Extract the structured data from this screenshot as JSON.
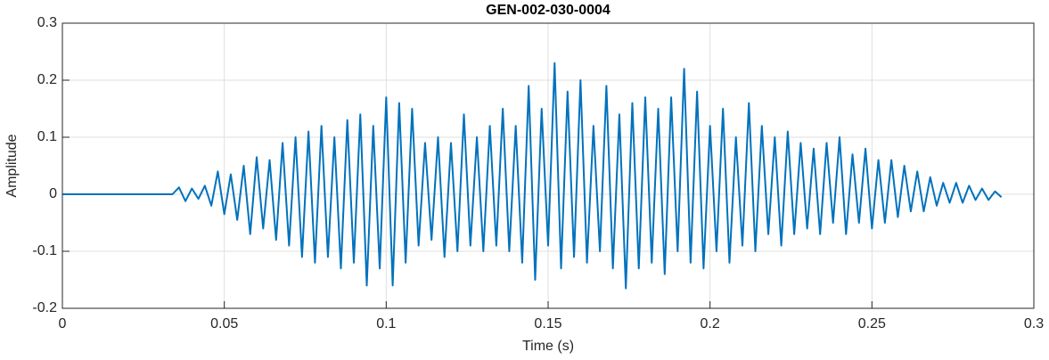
{
  "chart_data": {
    "type": "line",
    "title": "GEN-002-030-0004",
    "xlabel": "Time (s)",
    "ylabel": "Amplitude",
    "color": "#0072bd",
    "grid": true,
    "xlim": [
      0,
      0.3
    ],
    "xticks": [
      0,
      0.05,
      0.1,
      0.15,
      0.2,
      0.25,
      0.3
    ],
    "ylim": [
      -0.2,
      0.3
    ],
    "yticks": [
      -0.2,
      -0.1,
      0,
      0.1,
      0.2,
      0.3
    ],
    "x": [
      0,
      0.034,
      0.036,
      0.038,
      0.04,
      0.042,
      0.044,
      0.046,
      0.048,
      0.05,
      0.052,
      0.054,
      0.056,
      0.058,
      0.06,
      0.062,
      0.064,
      0.066,
      0.068,
      0.07,
      0.072,
      0.074,
      0.076,
      0.078,
      0.08,
      0.082,
      0.084,
      0.086,
      0.088,
      0.09,
      0.092,
      0.094,
      0.096,
      0.098,
      0.1,
      0.102,
      0.104,
      0.106,
      0.108,
      0.11,
      0.112,
      0.114,
      0.116,
      0.118,
      0.12,
      0.122,
      0.124,
      0.126,
      0.128,
      0.13,
      0.132,
      0.134,
      0.136,
      0.138,
      0.14,
      0.142,
      0.144,
      0.146,
      0.148,
      0.15,
      0.152,
      0.154,
      0.156,
      0.158,
      0.16,
      0.162,
      0.164,
      0.166,
      0.168,
      0.17,
      0.172,
      0.174,
      0.176,
      0.178,
      0.18,
      0.182,
      0.184,
      0.186,
      0.188,
      0.19,
      0.192,
      0.194,
      0.196,
      0.198,
      0.2,
      0.202,
      0.204,
      0.206,
      0.208,
      0.21,
      0.212,
      0.214,
      0.216,
      0.218,
      0.22,
      0.222,
      0.224,
      0.226,
      0.228,
      0.23,
      0.232,
      0.234,
      0.236,
      0.238,
      0.24,
      0.242,
      0.244,
      0.246,
      0.248,
      0.25,
      0.252,
      0.254,
      0.256,
      0.258,
      0.26,
      0.262,
      0.264,
      0.266,
      0.268,
      0.27,
      0.272,
      0.274,
      0.276,
      0.278,
      0.28,
      0.282,
      0.284,
      0.286,
      0.288,
      0.29
    ],
    "values": [
      0,
      0,
      0.012,
      -0.012,
      0.01,
      -0.008,
      0.015,
      -0.02,
      0.04,
      -0.035,
      0.035,
      -0.045,
      0.05,
      -0.07,
      0.065,
      -0.06,
      0.06,
      -0.08,
      0.09,
      -0.09,
      0.1,
      -0.11,
      0.11,
      -0.12,
      0.12,
      -0.11,
      0.1,
      -0.13,
      0.13,
      -0.12,
      0.14,
      -0.16,
      0.12,
      -0.13,
      0.17,
      -0.16,
      0.16,
      -0.12,
      0.15,
      -0.09,
      0.09,
      -0.08,
      0.1,
      -0.11,
      0.09,
      -0.1,
      0.14,
      -0.09,
      0.1,
      -0.1,
      0.12,
      -0.09,
      0.15,
      -0.1,
      0.12,
      -0.12,
      0.19,
      -0.15,
      0.15,
      -0.09,
      0.23,
      -0.13,
      0.18,
      -0.11,
      0.2,
      -0.12,
      0.12,
      -0.1,
      0.19,
      -0.13,
      0.14,
      -0.165,
      0.16,
      -0.13,
      0.17,
      -0.12,
      0.15,
      -0.14,
      0.17,
      -0.1,
      0.22,
      -0.12,
      0.18,
      -0.13,
      0.12,
      -0.1,
      0.15,
      -0.12,
      0.1,
      -0.09,
      0.16,
      -0.1,
      0.12,
      -0.07,
      0.1,
      -0.09,
      0.11,
      -0.07,
      0.09,
      -0.06,
      0.08,
      -0.07,
      0.09,
      -0.05,
      0.1,
      -0.07,
      0.07,
      -0.05,
      0.08,
      -0.06,
      0.06,
      -0.05,
      0.06,
      -0.04,
      0.05,
      -0.03,
      0.04,
      -0.03,
      0.03,
      -0.02,
      0.02,
      -0.015,
      0.02,
      -0.015,
      0.015,
      -0.01,
      0.01,
      -0.01,
      0.005,
      -0.005
    ]
  }
}
